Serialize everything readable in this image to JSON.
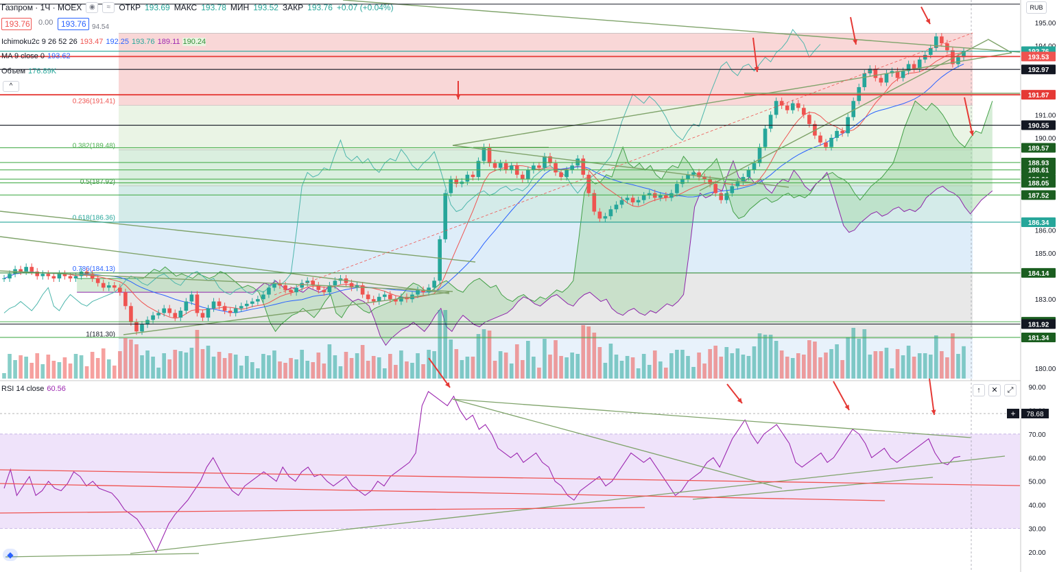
{
  "header": {
    "symbol": "Газпром · 1Ч · MOEX",
    "open_label": "ОТКР",
    "open": "193.69",
    "high_label": "МАКС",
    "high": "193.78",
    "low_label": "МИН",
    "low": "193.52",
    "close_label": "ЗАКР",
    "close": "193.76",
    "change": "+0.07 (+0.04%)"
  },
  "quote": {
    "bid": "193.76",
    "mid": "0.00",
    "ask": "193.76",
    "extra": "94.54"
  },
  "indicators": {
    "ichimoku_name": "Ichimoku2c 9 26 52 26",
    "ichimoku_values": [
      "193.47",
      "192.25",
      "193.76",
      "189.11",
      "190.24"
    ],
    "ichimoku_colors": [
      "#ef5350",
      "#2962ff",
      "#26a69a",
      "#9c27b0",
      "#388e3c"
    ],
    "ma_name": "MA 9 close 0",
    "ma_value": "193.62",
    "volume_name": "Объем",
    "volume_value": "176.89K",
    "rsi_name": "RSI 14 close",
    "rsi_value": "60.56"
  },
  "currency": "RUB",
  "colors": {
    "up": "#26a69a",
    "down": "#ef5350",
    "rsi": "#9c27b0",
    "trend": "#7fa36a",
    "marker": "#e53935"
  },
  "price_axis": [
    {
      "value": 195.0,
      "label": "195.00"
    },
    {
      "value": 194.0,
      "label": "194.00"
    },
    {
      "value": 191.0,
      "label": "191.00"
    },
    {
      "value": 190.0,
      "label": "190.00"
    },
    {
      "value": 186.0,
      "label": "186.00"
    },
    {
      "value": 185.0,
      "label": "185.00"
    },
    {
      "value": 183.0,
      "label": "183.00"
    },
    {
      "value": 180.0,
      "label": "180.00"
    }
  ],
  "price_levels": [
    {
      "value": 193.76,
      "label": "193.76",
      "color": "#26a69a",
      "line": "#26a69a"
    },
    {
      "value": 193.53,
      "label": "193.53",
      "color": "#ef5350",
      "line": "#e53935"
    },
    {
      "value": 192.97,
      "label": "192.97",
      "color": "#131722",
      "line": "#131722"
    },
    {
      "value": 191.87,
      "label": "191.87",
      "color": "#e53935",
      "line": "#e53935"
    },
    {
      "value": 190.55,
      "label": "190.55",
      "color": "#131722",
      "line": "#131722"
    },
    {
      "value": 189.57,
      "label": "189.57",
      "color": "#1b5e20",
      "line": "#4caf50"
    },
    {
      "value": 188.93,
      "label": "188.93",
      "color": "#1b5e20",
      "line": "#4caf50"
    },
    {
      "value": 188.61,
      "label": "188.61",
      "color": "#1b5e20",
      "line": "#4caf50"
    },
    {
      "value": 188.21,
      "label": "188.21",
      "color": "#1b5e20",
      "line": "#4caf50"
    },
    {
      "value": 188.05,
      "label": "188.05",
      "color": "#1b5e20",
      "line": "#4caf50"
    },
    {
      "value": 187.52,
      "label": "187.52",
      "color": "#1b5e20",
      "line": "#4caf50"
    },
    {
      "value": 186.34,
      "label": "186.34",
      "color": "#26a69a",
      "line": "#26a69a"
    },
    {
      "value": 184.14,
      "label": "184.14",
      "color": "#1b5e20",
      "line": "#388e3c"
    },
    {
      "value": 182.02,
      "label": "182.02",
      "color": "#1b5e20",
      "line": "#4caf50"
    },
    {
      "value": 181.92,
      "label": "181.92",
      "color": "#131722",
      "line": "#131722"
    },
    {
      "value": 181.34,
      "label": "181.34",
      "color": "#1b5e20",
      "line": "#4caf50"
    }
  ],
  "fib_levels": [
    {
      "value": 194.54,
      "label": "",
      "fill": "#f8d0d0",
      "text_color": "#787b86"
    },
    {
      "value": 191.41,
      "label": "0.236(191.41)",
      "fill": "#e6f2e0",
      "text_color": "#ef5350"
    },
    {
      "value": 189.48,
      "label": "0.382(189.48)",
      "fill": "#d3ecd9",
      "text_color": "#4caf50"
    },
    {
      "value": 187.92,
      "label": "0.5(187.92)",
      "fill": "#cde8e5",
      "text_color": "#388e3c"
    },
    {
      "value": 186.36,
      "label": "0.618(186.36)",
      "fill": "#d8eaf8",
      "text_color": "#26a69a"
    },
    {
      "value": 184.13,
      "label": "0.786(184.13)",
      "fill": "#e4e4e4",
      "text_color": "#2962ff"
    },
    {
      "value": 181.3,
      "label": "1(181.30)",
      "fill": "#d8eaf8",
      "text_color": "#131722"
    }
  ],
  "rsi_axis": [
    {
      "value": 90,
      "label": "90.00"
    },
    {
      "value": 80,
      "label": "80.00"
    },
    {
      "value": 70,
      "label": "70.00"
    },
    {
      "value": 60,
      "label": "60.00"
    },
    {
      "value": 50,
      "label": "50.00"
    },
    {
      "value": 40,
      "label": "40.00"
    },
    {
      "value": 30,
      "label": "30.00"
    },
    {
      "value": 20,
      "label": "20.00"
    }
  ],
  "rsi_marker": {
    "value": 78.68,
    "label": "78.68"
  },
  "rsi_series": [
    47,
    55,
    44,
    48,
    52,
    44,
    46,
    50,
    47,
    46,
    49,
    54,
    52,
    48,
    50,
    47,
    46,
    45,
    42,
    38,
    36,
    34,
    30,
    25,
    20,
    26,
    32,
    36,
    39,
    42,
    46,
    50,
    56,
    60,
    55,
    50,
    46,
    44,
    48,
    50,
    52,
    54,
    52,
    50,
    56,
    52,
    50,
    54,
    56,
    52,
    53,
    50,
    48,
    50,
    52,
    48,
    46,
    44,
    46,
    50,
    48,
    52,
    54,
    56,
    58,
    62,
    82,
    88,
    86,
    84,
    82,
    86,
    80,
    76,
    78,
    72,
    74,
    70,
    64,
    62,
    60,
    62,
    58,
    60,
    62,
    58,
    56,
    50,
    48,
    44,
    42,
    46,
    48,
    50,
    52,
    48,
    50,
    54,
    58,
    62,
    60,
    58,
    60,
    56,
    52,
    48,
    44,
    46,
    50,
    52,
    54,
    58,
    60,
    56,
    62,
    68,
    72,
    76,
    70,
    66,
    70,
    72,
    74,
    70,
    66,
    58,
    56,
    58,
    60,
    62,
    58,
    60,
    64,
    68,
    72,
    70,
    66,
    60,
    62,
    64,
    60,
    58,
    60,
    62,
    64,
    66,
    68,
    62,
    58,
    57,
    60,
    60.56
  ],
  "chart_data": [
    {
      "type": "candlestick",
      "title": "Газпром · 1Ч · MOEX",
      "ylim": [
        179.7,
        196.0
      ],
      "close": [
        183.9,
        184.1,
        184.3,
        184.2,
        184.4,
        184.2,
        184.0,
        184.1,
        184.0,
        183.9,
        184.1,
        184.0,
        183.9,
        184.0,
        184.2,
        184.1,
        183.9,
        183.7,
        183.5,
        183.6,
        183.5,
        183.3,
        182.7,
        182.0,
        181.6,
        181.9,
        182.1,
        182.3,
        182.4,
        182.6,
        182.4,
        182.2,
        182.5,
        182.9,
        183.2,
        182.4,
        182.2,
        182.6,
        182.9,
        182.7,
        182.5,
        182.4,
        182.6,
        182.7,
        182.8,
        182.9,
        183.0,
        183.2,
        183.5,
        183.7,
        183.6,
        183.4,
        183.3,
        183.5,
        183.7,
        183.8,
        183.6,
        183.4,
        183.3,
        183.6,
        183.8,
        183.9,
        183.7,
        183.5,
        183.6,
        183.2,
        183.0,
        182.9,
        183.1,
        183.2,
        183.0,
        182.9,
        183.1,
        183.0,
        183.2,
        183.4,
        183.3,
        183.5,
        183.8,
        185.6,
        187.6,
        188.2,
        188.0,
        188.1,
        188.4,
        188.3,
        189.0,
        189.6,
        188.9,
        188.7,
        188.9,
        188.6,
        188.8,
        188.4,
        188.2,
        188.6,
        188.8,
        188.7,
        189.2,
        188.9,
        188.5,
        188.3,
        188.6,
        188.8,
        189.1,
        188.4,
        187.6,
        186.8,
        186.5,
        186.6,
        186.9,
        187.1,
        187.3,
        187.4,
        187.2,
        187.3,
        187.5,
        187.6,
        187.4,
        187.5,
        187.4,
        187.6,
        188.0,
        188.2,
        188.4,
        188.5,
        188.3,
        188.2,
        188.0,
        187.6,
        187.3,
        187.6,
        187.9,
        188.1,
        188.3,
        188.6,
        188.9,
        189.6,
        190.4,
        191.0,
        191.6,
        191.4,
        191.2,
        191.5,
        191.3,
        191.0,
        190.6,
        190.1,
        189.8,
        189.6,
        190.0,
        190.3,
        190.2,
        190.9,
        191.6,
        192.2,
        192.8,
        193.0,
        192.6,
        192.4,
        192.8,
        192.9,
        192.6,
        192.9,
        193.2,
        193.0,
        193.4,
        193.6,
        193.9,
        194.4,
        194.1,
        193.8,
        193.2,
        193.5,
        193.76
      ]
    },
    {
      "type": "line",
      "title": "RSI 14 close",
      "ylim": [
        16,
        92
      ]
    }
  ]
}
